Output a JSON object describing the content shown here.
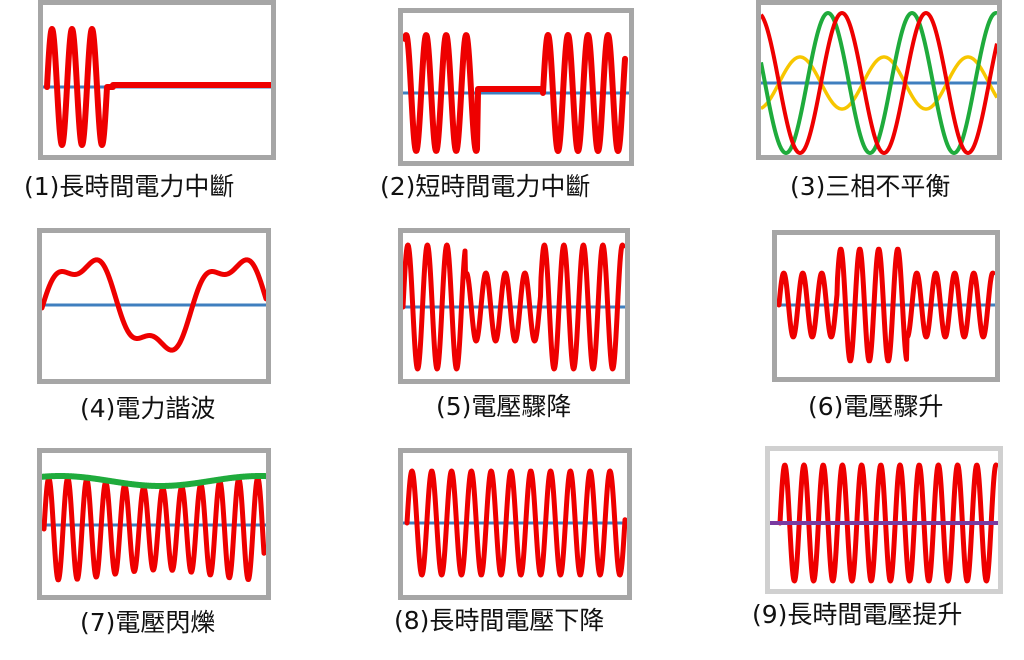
{
  "colors": {
    "wave": "#ee0000",
    "baseline": "#3f7fbf",
    "phase_b": "#1fab3c",
    "phase_c": "#f7c600",
    "envelope": "#1fab3c",
    "baseline_alt": "#7a3aa0",
    "frame": "#a6a6a6",
    "frame_light": "#d0d0d0"
  },
  "items": [
    {
      "id": 1,
      "caption": "(1)長時間電力中斷"
    },
    {
      "id": 2,
      "caption": "(2)短時間電力中斷"
    },
    {
      "id": 3,
      "caption": "(3)三相不平衡"
    },
    {
      "id": 4,
      "caption": "(4)電力諧波"
    },
    {
      "id": 5,
      "caption": "(5)電壓驟降"
    },
    {
      "id": 6,
      "caption": "(6)電壓驟升"
    },
    {
      "id": 7,
      "caption": "(7)電壓閃爍"
    },
    {
      "id": 8,
      "caption": "(8)長時間電壓下降"
    },
    {
      "id": 9,
      "caption": "(9)長時間電壓提升"
    }
  ]
}
